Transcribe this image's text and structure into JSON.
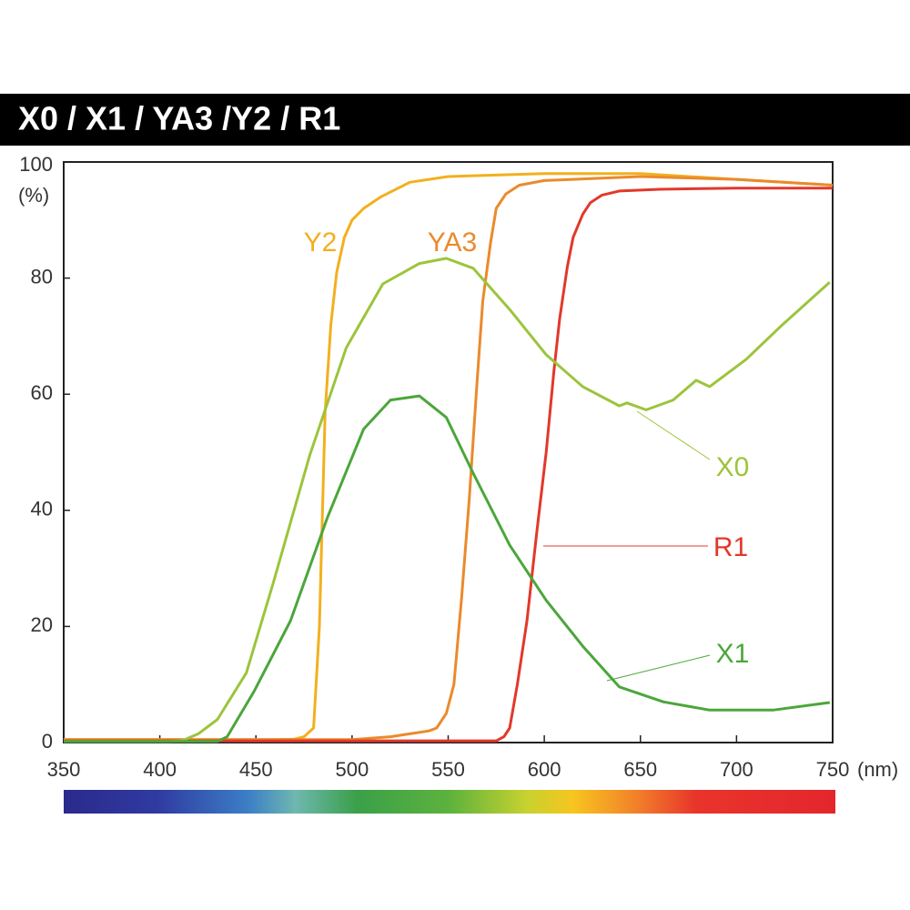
{
  "chart_data": {
    "type": "line",
    "title": "X0 / X1 / YA3 /Y2 / R1",
    "y_unit": "(%)",
    "x_unit": "(nm)",
    "xlim": [
      350,
      750
    ],
    "ylim": [
      0,
      100
    ],
    "xticks": [
      350,
      400,
      450,
      500,
      550,
      600,
      650,
      700,
      750
    ],
    "yticks": [
      0,
      20,
      40,
      60,
      80,
      100
    ],
    "grid": false,
    "series": [
      {
        "name": "Y2",
        "color": "#f2b01e",
        "x": [
          350,
          460,
          470,
          475,
          480,
          483,
          486,
          489,
          492,
          496,
          500,
          506,
          515,
          530,
          550,
          600,
          650,
          700,
          750
        ],
        "values": [
          0.5,
          0.5,
          0.6,
          1,
          2.5,
          20,
          57,
          72,
          81,
          87,
          90,
          92,
          94,
          96.5,
          97.5,
          98,
          98,
          97,
          96
        ]
      },
      {
        "name": "YA3",
        "color": "#ea8a2c",
        "x": [
          350,
          500,
          520,
          530,
          540,
          544,
          549,
          553,
          557,
          561,
          565,
          568,
          572,
          575,
          580,
          587,
          600,
          650,
          700,
          750
        ],
        "values": [
          0.5,
          0.5,
          1,
          1.5,
          2,
          2.5,
          5,
          10,
          25,
          42,
          62,
          76,
          86,
          92,
          94.5,
          96,
          96.8,
          97.5,
          97,
          96
        ]
      },
      {
        "name": "R1",
        "color": "#e2382b",
        "x": [
          350,
          575,
          579,
          582,
          586,
          591,
          596,
          601,
          605,
          608,
          612,
          615,
          620,
          624,
          630,
          639,
          660,
          700,
          750
        ],
        "values": [
          0.3,
          0.3,
          1,
          2.5,
          10,
          21,
          36,
          50,
          64,
          73,
          82,
          87,
          91,
          93,
          94.3,
          95,
          95.3,
          95.5,
          95.5
        ]
      },
      {
        "name": "X0",
        "color": "#9cc43c",
        "x": [
          350,
          405,
          411.5,
          420,
          430,
          445,
          459,
          478,
          497,
          516,
          535,
          549,
          563,
          582,
          601,
          620,
          639,
          643,
          653,
          667,
          679,
          686,
          705,
          724,
          748.5
        ],
        "values": [
          0.2,
          0.2,
          0.3,
          1.5,
          4,
          12,
          27.5,
          49.5,
          68,
          79,
          82.5,
          83.4,
          81.7,
          74.6,
          66.8,
          61.3,
          58,
          58.5,
          57.3,
          59,
          62.4,
          61.3,
          66,
          72,
          79.3
        ]
      },
      {
        "name": "X1",
        "color": "#4ba63b",
        "x": [
          350,
          430,
          435,
          449,
          468,
          487,
          506,
          520,
          535,
          549,
          563,
          582,
          601,
          620,
          639,
          662,
          686,
          719,
          748.5
        ],
        "values": [
          0.2,
          0.2,
          1,
          8.8,
          21,
          38.6,
          54,
          59,
          59.7,
          56,
          46.4,
          34,
          24.5,
          16.6,
          9.6,
          7,
          5.6,
          5.6,
          6.9
        ]
      }
    ]
  }
}
